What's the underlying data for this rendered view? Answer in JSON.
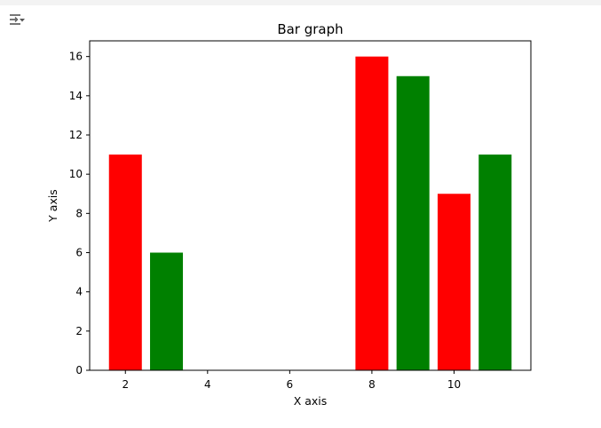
{
  "toolbar": {
    "output_icon": "output-settings-icon"
  },
  "chart_data": {
    "type": "bar",
    "title": "Bar graph",
    "xlabel": "X axis",
    "ylabel": "Y axis",
    "x": [
      2,
      3,
      8,
      9,
      10,
      11
    ],
    "values": [
      11,
      6,
      16,
      15,
      9,
      11
    ],
    "bar_colors": [
      "#ff0000",
      "#008000",
      "#ff0000",
      "#008000",
      "#ff0000",
      "#008000"
    ],
    "bar_width": 0.8,
    "xlim": [
      1.13,
      11.87
    ],
    "ylim": [
      0,
      16.8
    ],
    "xticks": [
      2,
      4,
      6,
      8,
      10
    ],
    "yticks": [
      0,
      2,
      4,
      6,
      8,
      10,
      12,
      14,
      16
    ],
    "grid": false,
    "legend": "none"
  }
}
